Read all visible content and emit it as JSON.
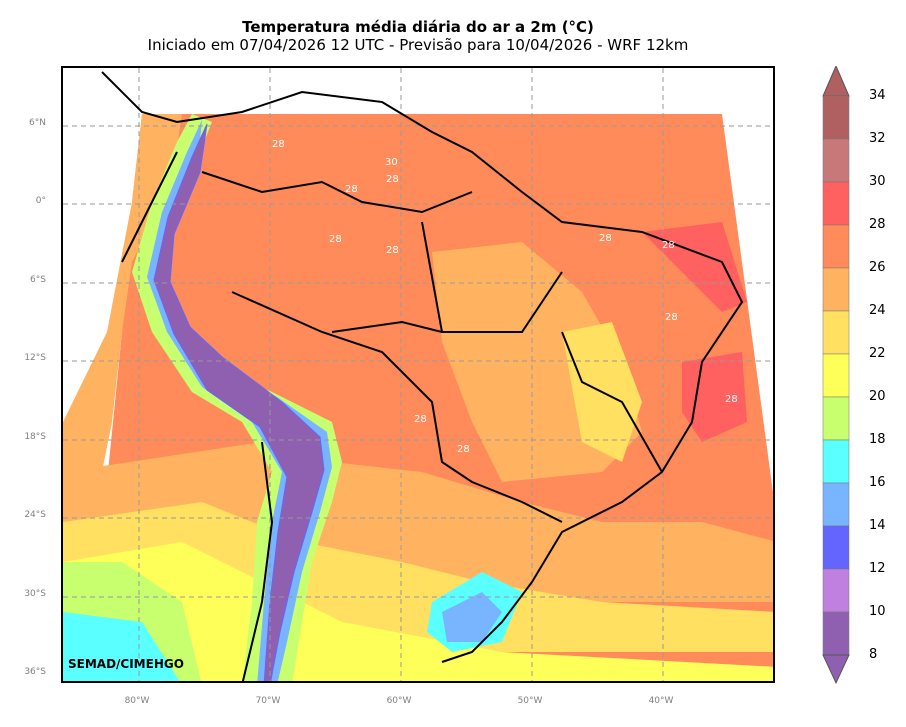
{
  "header": {
    "title": "Temperatura média diária do ar a 2m (°C)",
    "subtitle": "Iniciado em 07/04/2026 12 UTC - Previsão para 10/04/2026 - WRF 12km"
  },
  "map": {
    "lat_ticks": [
      "6°N",
      "0°",
      "6°S",
      "12°S",
      "18°S",
      "24°S",
      "30°S",
      "36°S"
    ],
    "lon_ticks": [
      "80°W",
      "70°W",
      "60°W",
      "50°W",
      "40°W"
    ],
    "contour_labels": [
      "28",
      "30",
      "28",
      "28",
      "28",
      "28",
      "28",
      "28",
      "28",
      "28",
      "28",
      "28"
    ],
    "credit": "SEMAD/CIMEHGO"
  },
  "colorbar": {
    "ticks": [
      "34",
      "32",
      "30",
      "28",
      "26",
      "24",
      "22",
      "20",
      "18",
      "16",
      "14",
      "12",
      "10",
      "8"
    ],
    "colors": [
      "#b06060",
      "#c87878",
      "#ff6060",
      "#ff8a5a",
      "#ffb260",
      "#ffe060",
      "#ffff5a",
      "#c8ff6e",
      "#5affff",
      "#78b4ff",
      "#6464ff",
      "#c080e0",
      "#9060b0"
    ],
    "extend_high_color": "#b06060",
    "extend_low_color": "#9060b0"
  }
}
